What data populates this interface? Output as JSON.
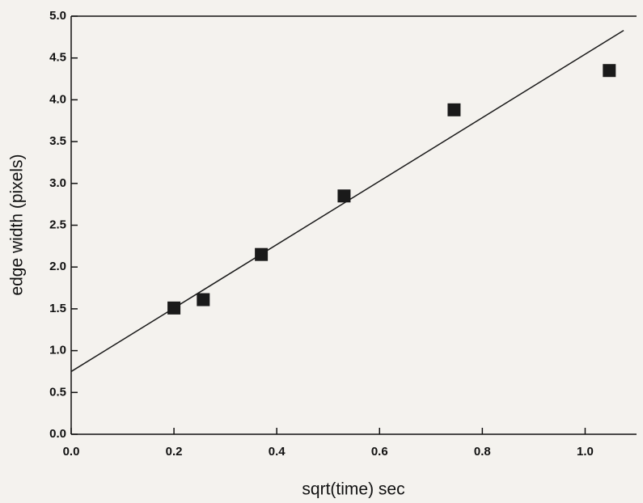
{
  "chart_data": {
    "type": "scatter",
    "x_label": "sqrt(time)  sec",
    "y_label": "edge width (pixels)",
    "xlim": [
      0,
      1.1
    ],
    "ylim": [
      0,
      5
    ],
    "xticks": [
      {
        "value": 0,
        "label": "0.0"
      },
      0.2,
      0.4,
      0.6,
      0.8,
      {
        "value": 1,
        "label": "1.0"
      }
    ],
    "yticks": [
      {
        "value": 0,
        "label": "0.0"
      },
      0.5,
      {
        "value": 1,
        "label": "1.0"
      },
      1.5,
      {
        "value": 2,
        "label": "2.0"
      },
      2.5,
      {
        "value": 3,
        "label": "3.0"
      },
      3.5,
      {
        "value": 4,
        "label": "4.0"
      },
      4.5,
      {
        "value": 5,
        "label": "5.0"
      }
    ],
    "series": [
      {
        "kind": "marker",
        "color": "#1a1a1a",
        "x": [
          0.2,
          0.257,
          0.37,
          0.531,
          0.745,
          1.047
        ],
        "values": [
          1.51,
          1.61,
          2.15,
          2.85,
          3.88,
          4.35
        ]
      },
      {
        "kind": "line",
        "color": "#1a1a1a",
        "x": [
          0,
          1.075
        ],
        "values": [
          0.75,
          4.83
        ]
      }
    ]
  }
}
